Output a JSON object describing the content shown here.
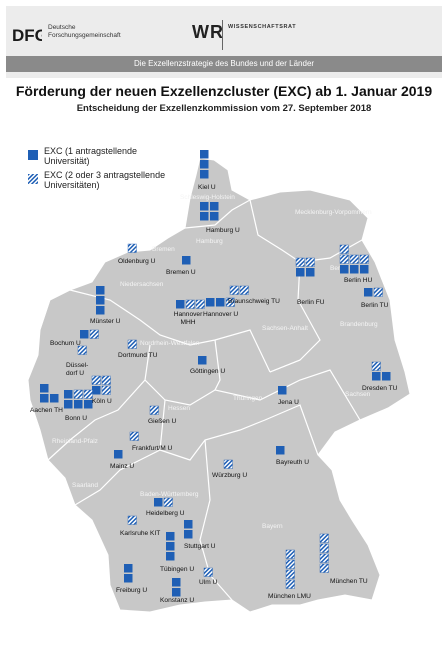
{
  "header": {
    "dfg_logo_text": "DFG",
    "dfg_name_line1": "Deutsche",
    "dfg_name_line2": "Forschungsgemeinschaft",
    "wr_logo": "WR",
    "wr_name": "WISSENSCHAFTSRAT",
    "banner": "Die Exzellenzstrategie des Bundes und der Länder"
  },
  "title": "Förderung der neuen Exzellenzcluster (EXC) ab 1. Januar 2019",
  "subtitle": "Entscheidung der Exzellenzkommission vom 27. September 2018",
  "legend": {
    "solid_line1": "EXC (1 antragstellende",
    "solid_line2": "Universität)",
    "hatched_line1": "EXC (2 oder 3 antragstellende",
    "hatched_line2": "Universitäten)"
  },
  "colors": {
    "cluster": "#1f5fb5",
    "land": "#c8c8c8",
    "border": "#ffffff",
    "region_label": "#f4f4f4"
  },
  "regions": [
    "Schleswig-Holstein",
    "Mecklenburg-Vorpommern",
    "Hamburg",
    "Bremen",
    "Niedersachsen",
    "Berlin",
    "Brandenburg",
    "Sachsen-Anhalt",
    "Nordrhein-Westfalen",
    "Hessen",
    "Thüringen",
    "Sachsen",
    "Rheinland-Pfalz",
    "Saarland",
    "Baden-Württemberg",
    "Bayern"
  ],
  "cities": [
    {
      "name": "Kiel U",
      "solid": 3,
      "hatched": 0
    },
    {
      "name": "Hamburg U",
      "solid": 4,
      "hatched": 0
    },
    {
      "name": "Oldenburg U",
      "solid": 0,
      "hatched": 1
    },
    {
      "name": "Bremen U",
      "solid": 1,
      "hatched": 0
    },
    {
      "name": "Berlin HU",
      "solid": 3,
      "hatched": 4
    },
    {
      "name": "Berlin FU",
      "solid": 2,
      "hatched": 2
    },
    {
      "name": "Berlin TU",
      "solid": 1,
      "hatched": 1
    },
    {
      "name": "Münster U",
      "solid": 3,
      "hatched": 0
    },
    {
      "name": "Hannover MHH",
      "solid": 1,
      "hatched": 2
    },
    {
      "name": "Hannover U",
      "solid": 2,
      "hatched": 1
    },
    {
      "name": "Braunschweig TU",
      "solid": 0,
      "hatched": 2
    },
    {
      "name": "Bochum U",
      "solid": 1,
      "hatched": 1
    },
    {
      "name": "Dortmund TU",
      "solid": 0,
      "hatched": 1
    },
    {
      "name": "Düssel-dorf U",
      "solid": 0,
      "hatched": 1
    },
    {
      "name": "Köln U",
      "solid": 1,
      "hatched": 3
    },
    {
      "name": "Aachen TH",
      "solid": 3,
      "hatched": 0
    },
    {
      "name": "Bonn U",
      "solid": 4,
      "hatched": 2
    },
    {
      "name": "Göttingen U",
      "solid": 1,
      "hatched": 0
    },
    {
      "name": "Jena U",
      "solid": 1,
      "hatched": 0
    },
    {
      "name": "Dresden TU",
      "solid": 2,
      "hatched": 1
    },
    {
      "name": "Gießen U",
      "solid": 0,
      "hatched": 1
    },
    {
      "name": "Frankfurt/M U",
      "solid": 0,
      "hatched": 1
    },
    {
      "name": "Mainz U",
      "solid": 1,
      "hatched": 0
    },
    {
      "name": "Würzburg U",
      "solid": 0,
      "hatched": 1
    },
    {
      "name": "Bayreuth U",
      "solid": 1,
      "hatched": 0
    },
    {
      "name": "Heidelberg U",
      "solid": 1,
      "hatched": 1
    },
    {
      "name": "Karlsruhe KIT",
      "solid": 0,
      "hatched": 1
    },
    {
      "name": "Stuttgart U",
      "solid": 2,
      "hatched": 0
    },
    {
      "name": "Tübingen U",
      "solid": 3,
      "hatched": 0
    },
    {
      "name": "Ulm U",
      "solid": 0,
      "hatched": 1
    },
    {
      "name": "Freiburg U",
      "solid": 2,
      "hatched": 0
    },
    {
      "name": "Konstanz U",
      "solid": 2,
      "hatched": 0
    },
    {
      "name": "München LMU",
      "solid": 0,
      "hatched": 4
    },
    {
      "name": "München TU",
      "solid": 0,
      "hatched": 4
    }
  ]
}
